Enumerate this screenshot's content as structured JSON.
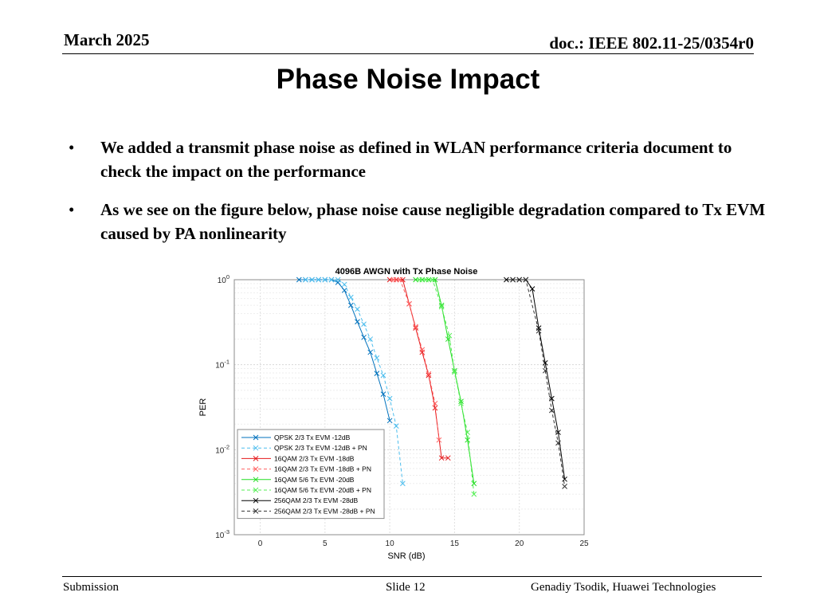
{
  "header": {
    "date": "March 2025",
    "doc_id": "doc.: IEEE 802.11-25/0354r0"
  },
  "title": "Phase Noise Impact",
  "bullets": [
    "We added a transmit phase noise as defined in WLAN performance criteria document to check the impact on the performance",
    "As we see on the figure below, phase noise cause negligible degradation compared to Tx EVM caused by PA nonlinearity"
  ],
  "bullet_symbol": "•",
  "footer": {
    "left": "Submission",
    "center": "Slide 12",
    "right": "Genadiy Tsodik, Huawei Technologies"
  },
  "chart_data": {
    "type": "line",
    "title": "4096B AWGN with Tx Phase Noise",
    "xlabel": "SNR (dB)",
    "ylabel": "PER",
    "xlim": [
      -2,
      25
    ],
    "ylim": [
      0.001,
      1
    ],
    "yscale": "log",
    "xticks": [
      0,
      5,
      10,
      15,
      20,
      25
    ],
    "ytick_labels": [
      "10^0",
      "10^-1",
      "10^-2",
      "10^-3"
    ],
    "grid": true,
    "legend_position": "bottom-left",
    "series": [
      {
        "name": "QPSK 2/3 Tx EVM -12dB",
        "color": "#0072BD",
        "dash": "solid",
        "x": [
          3,
          3.5,
          4,
          4.5,
          5,
          5.5,
          6,
          6.5,
          7,
          7.5,
          8,
          8.5,
          9,
          9.5,
          10
        ],
        "y": [
          1,
          1,
          1,
          1,
          1,
          1,
          0.93,
          0.75,
          0.5,
          0.32,
          0.21,
          0.14,
          0.079,
          0.045,
          0.022
        ]
      },
      {
        "name": "QPSK 2/3 Tx EVM -12dB + PN",
        "color": "#4DBEEE",
        "dash": "dashed",
        "x": [
          3.5,
          4,
          4.5,
          5,
          5.5,
          6,
          6.5,
          7,
          7.5,
          8,
          8.5,
          9,
          9.5,
          10,
          10.5,
          11
        ],
        "y": [
          1,
          1,
          1,
          1,
          1,
          1,
          0.88,
          0.62,
          0.45,
          0.3,
          0.2,
          0.12,
          0.075,
          0.04,
          0.019,
          0.004
        ]
      },
      {
        "name": "16QAM 2/3 Tx EVM -18dB",
        "color": "#E41A1C",
        "dash": "solid",
        "x": [
          10,
          10.5,
          11,
          11.5,
          12,
          12.5,
          13,
          13.5,
          14,
          14.5
        ],
        "y": [
          1,
          1,
          1,
          0.52,
          0.27,
          0.14,
          0.075,
          0.031,
          0.008,
          0.008
        ]
      },
      {
        "name": "16QAM 2/3 Tx EVM -18dB + PN",
        "color": "#FF6060",
        "dash": "dashed",
        "x": [
          10.3,
          10.8,
          11.5,
          12,
          12.5,
          13,
          13.5,
          13.8
        ],
        "y": [
          1,
          1,
          0.52,
          0.28,
          0.15,
          0.078,
          0.035,
          0.013
        ]
      },
      {
        "name": "16QAM 5/6 Tx EVM -20dB",
        "color": "#22DD22",
        "dash": "solid",
        "x": [
          12,
          12.5,
          13,
          13.5,
          14,
          14.5,
          15,
          15.5,
          16,
          16.5
        ],
        "y": [
          1,
          1,
          1,
          1,
          0.5,
          0.2,
          0.085,
          0.037,
          0.013,
          0.004
        ]
      },
      {
        "name": "16QAM 5/6 Tx EVM -20dB + PN",
        "color": "#55EE55",
        "dash": "dashed",
        "x": [
          12.3,
          12.8,
          13.3,
          14,
          14.6,
          15,
          15.5,
          16,
          16.5
        ],
        "y": [
          1,
          1,
          1,
          0.48,
          0.22,
          0.082,
          0.035,
          0.016,
          0.003
        ]
      },
      {
        "name": "256QAM 2/3 Tx EVM -28dB",
        "color": "#000000",
        "dash": "solid",
        "x": [
          19,
          19.5,
          20,
          20.5,
          21,
          21.5,
          22,
          22.5,
          23,
          23.5
        ],
        "y": [
          1,
          1,
          1,
          1,
          0.78,
          0.27,
          0.105,
          0.04,
          0.016,
          0.0045
        ]
      },
      {
        "name": "256QAM 2/3 Tx EVM -28dB + PN",
        "color": "#333333",
        "dash": "dashed",
        "x": [
          19.5,
          20,
          20.5,
          21.5,
          22,
          22.5,
          23,
          23.5
        ],
        "y": [
          1,
          1,
          1,
          0.25,
          0.085,
          0.029,
          0.012,
          0.0037
        ]
      }
    ]
  }
}
